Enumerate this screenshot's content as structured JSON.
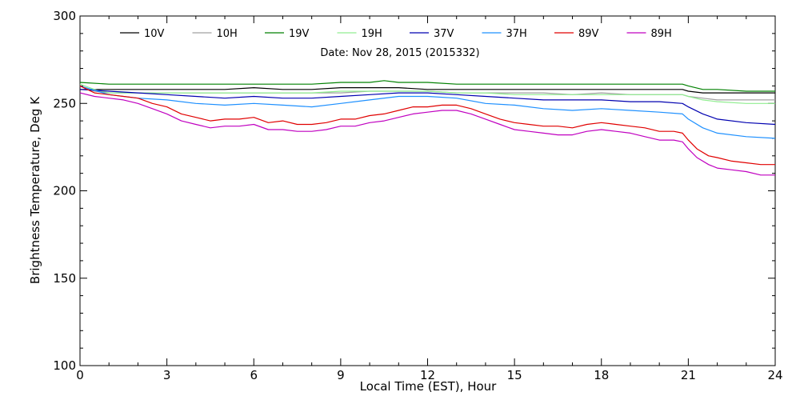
{
  "chart_data": {
    "type": "line",
    "annotation": "Date: Nov 28, 2015 (2015332)",
    "xlabel": "Local Time (EST), Hour",
    "ylabel": "Brightness Temperature, Deg K",
    "xlim": [
      0,
      24
    ],
    "ylim": [
      100,
      300
    ],
    "x_ticks": [
      0,
      3,
      6,
      9,
      12,
      15,
      18,
      21,
      24
    ],
    "y_ticks": [
      100,
      150,
      200,
      250,
      300
    ],
    "grid": false,
    "legend_position": "top, single row inside plot",
    "series": [
      {
        "name": "10V",
        "color": "#000000",
        "x": [
          0,
          1,
          2,
          3,
          4,
          5,
          6,
          7,
          8,
          9,
          10,
          11,
          12,
          13,
          14,
          15,
          16,
          17,
          18,
          19,
          20,
          20.8,
          21,
          21.5,
          22,
          23,
          24
        ],
        "y": [
          258,
          258,
          258,
          258,
          258,
          258,
          259,
          258,
          258,
          259,
          259,
          259,
          258,
          258,
          258,
          258,
          258,
          258,
          258,
          258,
          258,
          258,
          257,
          256,
          256,
          256,
          256
        ]
      },
      {
        "name": "10H",
        "color": "#a0a0a0",
        "x": [
          0,
          0.5,
          1,
          2,
          3,
          4,
          5,
          6,
          7,
          8,
          9,
          10,
          11,
          12,
          13,
          14,
          15,
          16,
          17,
          18,
          19,
          20,
          20.8,
          21,
          21.5,
          22,
          23,
          24
        ],
        "y": [
          260,
          257,
          256,
          256,
          256,
          256,
          256,
          256,
          256,
          256,
          256,
          257,
          257,
          257,
          256,
          256,
          256,
          256,
          255,
          256,
          255,
          255,
          255,
          254,
          253,
          252,
          252,
          252
        ]
      },
      {
        "name": "19V",
        "color": "#008000",
        "x": [
          0,
          1,
          2,
          3,
          4,
          5,
          6,
          7,
          8,
          9,
          10,
          10.5,
          11,
          12,
          13,
          14,
          15,
          16,
          17,
          18,
          19,
          20,
          20.8,
          21,
          21.5,
          22,
          23,
          24
        ],
        "y": [
          262,
          261,
          261,
          261,
          261,
          261,
          261,
          261,
          261,
          262,
          262,
          263,
          262,
          262,
          261,
          261,
          261,
          261,
          261,
          261,
          261,
          261,
          261,
          260,
          258,
          258,
          257,
          257
        ]
      },
      {
        "name": "19H",
        "color": "#90ee90",
        "x": [
          0,
          0.5,
          1,
          2,
          3,
          4,
          5,
          6,
          7,
          8,
          9,
          10,
          11,
          12,
          13,
          14,
          15,
          16,
          17,
          18,
          19,
          20,
          20.8,
          21,
          21.5,
          22,
          23,
          24
        ],
        "y": [
          261,
          258,
          256,
          256,
          256,
          256,
          256,
          256,
          256,
          256,
          257,
          257,
          257,
          257,
          256,
          256,
          255,
          255,
          255,
          255,
          255,
          255,
          255,
          254,
          252,
          251,
          250,
          250
        ]
      },
      {
        "name": "37V",
        "color": "#0000b0",
        "x": [
          0,
          1,
          2,
          3,
          4,
          5,
          6,
          7,
          8,
          9,
          10,
          11,
          12,
          13,
          14,
          15,
          16,
          17,
          18,
          19,
          20,
          20.8,
          21,
          21.5,
          22,
          23,
          24
        ],
        "y": [
          258,
          257,
          256,
          255,
          254,
          253,
          254,
          253,
          253,
          254,
          255,
          256,
          256,
          255,
          254,
          253,
          252,
          252,
          252,
          251,
          251,
          250,
          248,
          244,
          241,
          239,
          238
        ]
      },
      {
        "name": "37H",
        "color": "#1e90ff",
        "x": [
          0,
          1,
          2,
          3,
          4,
          5,
          6,
          7,
          8,
          9,
          10,
          11,
          12,
          13,
          14,
          15,
          16,
          17,
          18,
          19,
          20,
          20.8,
          21,
          21.5,
          22,
          23,
          24
        ],
        "y": [
          260,
          255,
          253,
          252,
          250,
          249,
          250,
          249,
          248,
          250,
          252,
          254,
          254,
          253,
          250,
          249,
          247,
          246,
          247,
          246,
          245,
          244,
          241,
          236,
          233,
          231,
          230
        ]
      },
      {
        "name": "89V",
        "color": "#e00000",
        "x": [
          0,
          0.5,
          1,
          1.5,
          2,
          2.5,
          3,
          3.5,
          4,
          4.5,
          5,
          5.5,
          6,
          6.5,
          7,
          7.5,
          8,
          8.5,
          9,
          9.5,
          10,
          10.5,
          11,
          11.5,
          12,
          12.5,
          13,
          13.5,
          14,
          14.5,
          15,
          15.5,
          16,
          16.5,
          17,
          17.5,
          18,
          18.5,
          19,
          19.5,
          20,
          20.5,
          20.8,
          21,
          21.3,
          21.7,
          22,
          22.5,
          23,
          23.5,
          24
        ],
        "y": [
          260,
          256,
          255,
          254,
          253,
          250,
          248,
          244,
          242,
          240,
          241,
          241,
          242,
          239,
          240,
          238,
          238,
          239,
          241,
          241,
          243,
          244,
          246,
          248,
          248,
          249,
          249,
          247,
          244,
          241,
          239,
          238,
          237,
          237,
          236,
          238,
          239,
          238,
          237,
          236,
          234,
          234,
          233,
          229,
          224,
          220,
          219,
          217,
          216,
          215,
          215
        ]
      },
      {
        "name": "89H",
        "color": "#c000c0",
        "x": [
          0,
          0.5,
          1,
          1.5,
          2,
          2.5,
          3,
          3.5,
          4,
          4.5,
          5,
          5.5,
          6,
          6.5,
          7,
          7.5,
          8,
          8.5,
          9,
          9.5,
          10,
          10.5,
          11,
          11.5,
          12,
          12.5,
          13,
          13.5,
          14,
          14.5,
          15,
          15.5,
          16,
          16.5,
          17,
          17.5,
          18,
          18.5,
          19,
          19.5,
          20,
          20.5,
          20.8,
          21,
          21.3,
          21.7,
          22,
          22.5,
          23,
          23.5,
          24
        ],
        "y": [
          256,
          254,
          253,
          252,
          250,
          247,
          244,
          240,
          238,
          236,
          237,
          237,
          238,
          235,
          235,
          234,
          234,
          235,
          237,
          237,
          239,
          240,
          242,
          244,
          245,
          246,
          246,
          244,
          241,
          238,
          235,
          234,
          233,
          232,
          232,
          234,
          235,
          234,
          233,
          231,
          229,
          229,
          228,
          224,
          219,
          215,
          213,
          212,
          211,
          209,
          209
        ]
      }
    ]
  }
}
